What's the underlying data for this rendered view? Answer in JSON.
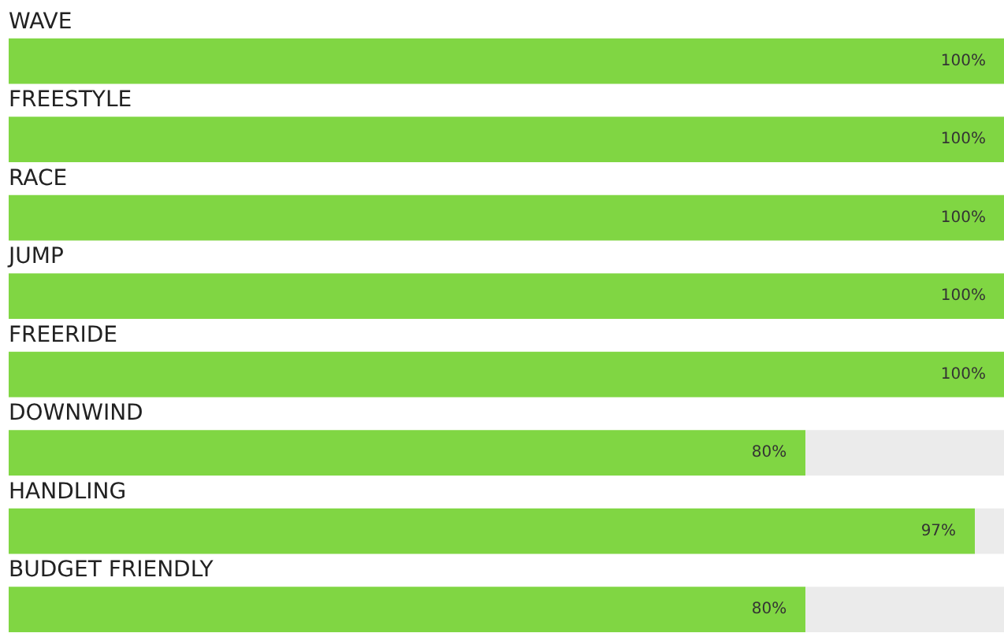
{
  "chart_data": {
    "type": "bar",
    "orientation": "horizontal",
    "stacked": true,
    "tick_labels": "y",
    "categories": [
      "WAVE",
      "FREESTYLE",
      "RACE",
      "JUMP",
      "FREERIDE",
      "DOWNWIND",
      "HANDLING",
      "BUDGET FRIENDLY"
    ],
    "series": [
      {
        "color": "#80d643",
        "values": [
          100,
          100,
          100,
          100,
          100,
          80,
          97,
          80
        ],
        "value_labels": [
          "100%",
          "100%",
          "100%",
          "100%",
          "100%",
          "80%",
          "97%",
          "80%"
        ]
      },
      {
        "color": "#ebebeb",
        "values": [
          0,
          0,
          0,
          0,
          0,
          20,
          3,
          20
        ]
      }
    ]
  }
}
